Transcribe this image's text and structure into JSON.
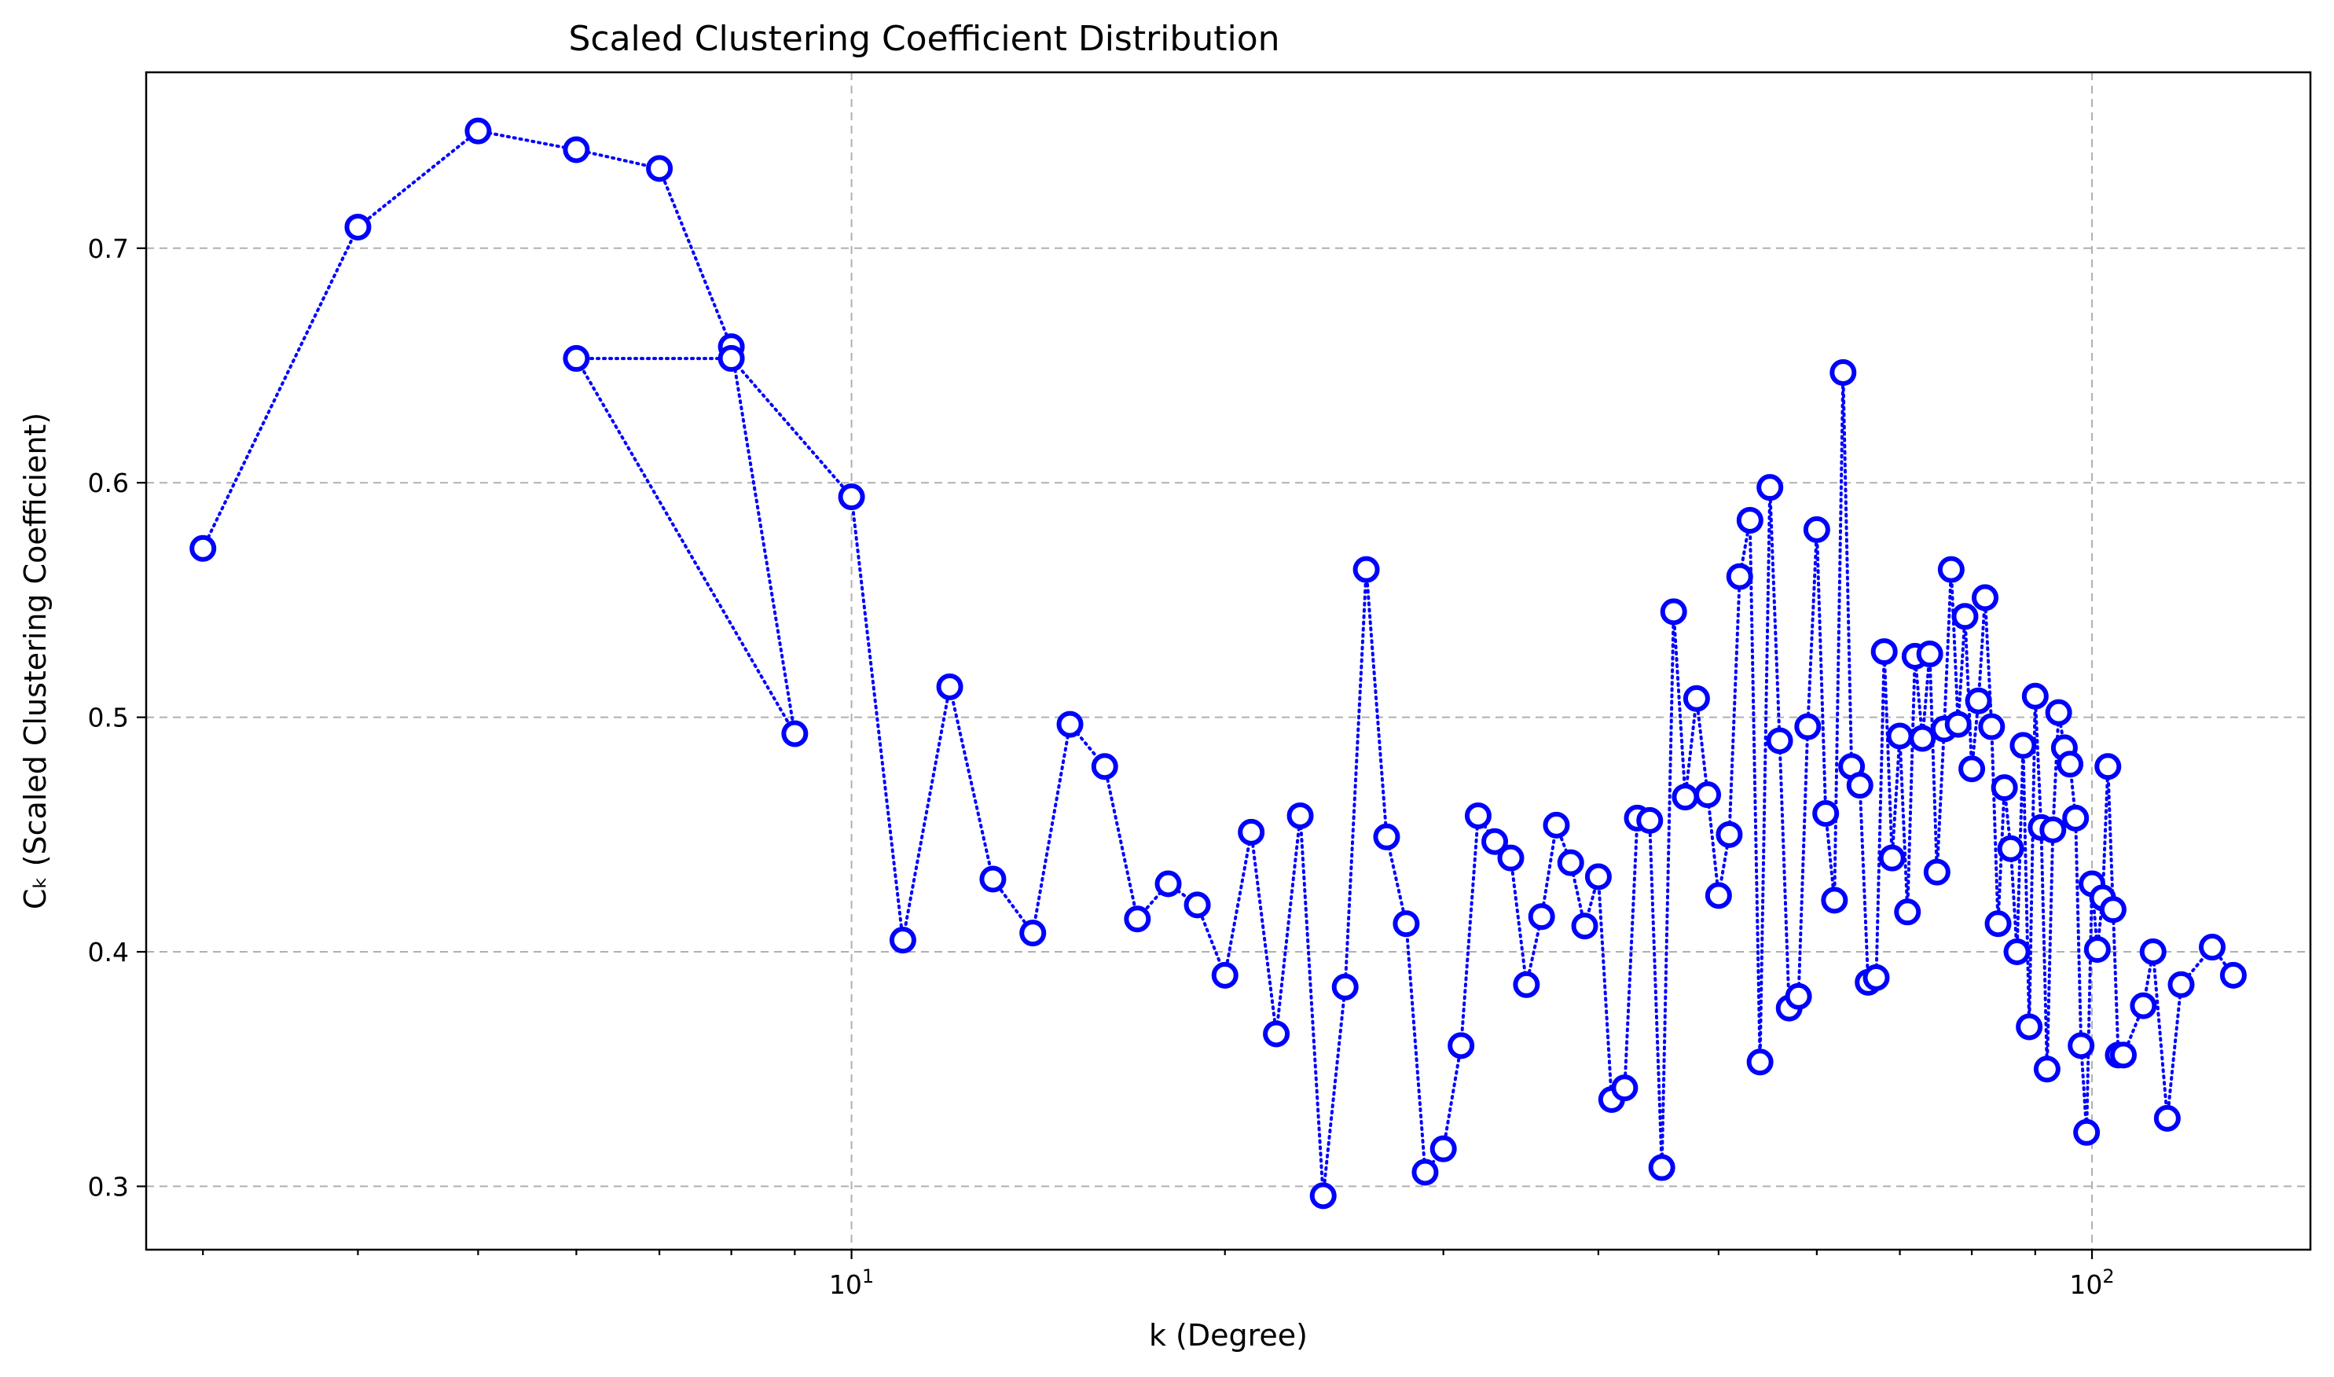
{
  "chart_data": {
    "type": "line",
    "title": "Scaled Clustering Coefficient Distribution",
    "xlabel": "k (Degree)",
    "ylabel": "Cₖ (Scaled Clustering Coefficient)",
    "xscale": "log",
    "xlim": [
      2.7,
      150
    ],
    "ylim": [
      0.273,
      0.775
    ],
    "x_ticks": [
      {
        "value": 10,
        "label_base": "10",
        "label_exp": "1"
      },
      {
        "value": 100,
        "label_base": "10",
        "label_exp": "2"
      }
    ],
    "y_ticks": [
      {
        "value": 0.3,
        "label": "0.3"
      },
      {
        "value": 0.4,
        "label": "0.4"
      },
      {
        "value": 0.5,
        "label": "0.5"
      },
      {
        "value": 0.6,
        "label": "0.6"
      },
      {
        "value": 0.7,
        "label": "0.7"
      }
    ],
    "grid": true,
    "series": [
      {
        "color": "#0000ff",
        "line_style": "dotted",
        "marker": "hollow-circle",
        "x": [
          3,
          4,
          5,
          6,
          7,
          8,
          9,
          6,
          8,
          10,
          11,
          12,
          13,
          14,
          15,
          16,
          17,
          18,
          19,
          20,
          21,
          22,
          23,
          24,
          25,
          26,
          27,
          28,
          29,
          30,
          31,
          32,
          33,
          34,
          35,
          36,
          37,
          38,
          39,
          40,
          41,
          42,
          43,
          44,
          45,
          46,
          47,
          48,
          49,
          50,
          51,
          52,
          53,
          54,
          55,
          56,
          57,
          58,
          59,
          60,
          61,
          62,
          63,
          64,
          65,
          66,
          67,
          68,
          69,
          70,
          71,
          72,
          73,
          74,
          75,
          76,
          77,
          78,
          79,
          80,
          81,
          82,
          83,
          84,
          85,
          86,
          87,
          88,
          89,
          90,
          91,
          92,
          93,
          94,
          95,
          96,
          97,
          98,
          99,
          100,
          101,
          102,
          103,
          104,
          105,
          106,
          110,
          112,
          115,
          118,
          125,
          130
        ],
        "y": [
          0.572,
          0.709,
          0.75,
          0.742,
          0.734,
          0.658,
          0.493,
          0.653,
          0.653,
          0.594,
          0.405,
          0.513,
          0.431,
          0.408,
          0.497,
          0.479,
          0.414,
          0.429,
          0.42,
          0.39,
          0.451,
          0.365,
          0.458,
          0.296,
          0.385,
          0.563,
          0.449,
          0.412,
          0.306,
          0.316,
          0.36,
          0.458,
          0.447,
          0.44,
          0.386,
          0.415,
          0.454,
          0.438,
          0.411,
          0.432,
          0.337,
          0.342,
          0.457,
          0.456,
          0.308,
          0.545,
          0.466,
          0.508,
          0.467,
          0.424,
          0.45,
          0.56,
          0.584,
          0.353,
          0.598,
          0.49,
          0.376,
          0.381,
          0.496,
          0.58,
          0.459,
          0.422,
          0.647,
          0.479,
          0.471,
          0.387,
          0.389,
          0.528,
          0.44,
          0.492,
          0.417,
          0.526,
          0.491,
          0.527,
          0.434,
          0.495,
          0.563,
          0.497,
          0.543,
          0.478,
          0.507,
          0.551,
          0.496,
          0.412,
          0.47,
          0.444,
          0.4,
          0.488,
          0.368,
          0.509,
          0.453,
          0.35,
          0.452,
          0.502,
          0.487,
          0.48,
          0.457,
          0.36,
          0.323,
          0.429,
          0.401,
          0.423,
          0.479,
          0.418,
          0.356,
          0.356,
          0.377,
          0.4,
          0.329,
          0.386,
          0.402,
          0.39
        ]
      }
    ]
  }
}
